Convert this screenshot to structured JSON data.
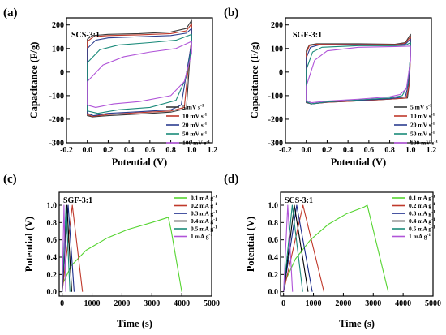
{
  "chart_data": [
    {
      "panel": "(a)",
      "type": "line",
      "label": "SCS-3:1",
      "xlabel": "Potential (V)",
      "ylabel": "Capacitance (F/g)",
      "xlim": [
        -0.2,
        1.2
      ],
      "ylim": [
        -300,
        230
      ],
      "xticks": [
        -0.2,
        0.0,
        0.2,
        0.4,
        0.6,
        0.8,
        1.0,
        1.2
      ],
      "yticks": [
        -300,
        -200,
        -100,
        0,
        100,
        200
      ],
      "legend_position": "bottom-right",
      "series": [
        {
          "name": "5 mV s",
          "superscript": "-1",
          "color": "#3a3a3a",
          "top": [
            [
              0.0,
              140
            ],
            [
              0.05,
              155
            ],
            [
              0.2,
              160
            ],
            [
              0.5,
              163
            ],
            [
              0.8,
              170
            ],
            [
              0.95,
              185
            ],
            [
              1.0,
              220
            ]
          ],
          "bottom": [
            [
              1.0,
              150
            ],
            [
              0.98,
              40
            ],
            [
              0.95,
              -155
            ],
            [
              0.8,
              -170
            ],
            [
              0.5,
              -178
            ],
            [
              0.2,
              -185
            ],
            [
              0.05,
              -190
            ],
            [
              0.0,
              -185
            ],
            [
              0.0,
              140
            ]
          ]
        },
        {
          "name": "10 mV s",
          "superscript": "-1",
          "color": "#c0392b",
          "top": [
            [
              0.0,
              130
            ],
            [
              0.06,
              150
            ],
            [
              0.2,
              155
            ],
            [
              0.5,
              158
            ],
            [
              0.8,
              163
            ],
            [
              0.95,
              175
            ],
            [
              1.0,
              205
            ]
          ],
          "bottom": [
            [
              1.0,
              140
            ],
            [
              0.97,
              30
            ],
            [
              0.93,
              -150
            ],
            [
              0.8,
              -165
            ],
            [
              0.5,
              -172
            ],
            [
              0.2,
              -180
            ],
            [
              0.05,
              -188
            ],
            [
              0.0,
              -180
            ],
            [
              0.0,
              130
            ]
          ]
        },
        {
          "name": "20 mV s",
          "superscript": "-1",
          "color": "#2c3e8f",
          "top": [
            [
              0.0,
              100
            ],
            [
              0.08,
              135
            ],
            [
              0.2,
              145
            ],
            [
              0.5,
              150
            ],
            [
              0.8,
              155
            ],
            [
              0.95,
              165
            ],
            [
              1.0,
              185
            ]
          ],
          "bottom": [
            [
              1.0,
              125
            ],
            [
              0.96,
              20
            ],
            [
              0.9,
              -140
            ],
            [
              0.8,
              -160
            ],
            [
              0.5,
              -168
            ],
            [
              0.2,
              -175
            ],
            [
              0.06,
              -185
            ],
            [
              0.0,
              -175
            ],
            [
              0.0,
              100
            ]
          ]
        },
        {
          "name": "50 mV s",
          "superscript": "-1",
          "color": "#1a8a7a",
          "top": [
            [
              0.0,
              40
            ],
            [
              0.12,
              95
            ],
            [
              0.3,
              115
            ],
            [
              0.6,
              125
            ],
            [
              0.85,
              135
            ],
            [
              1.0,
              160
            ]
          ],
          "bottom": [
            [
              1.0,
              110
            ],
            [
              0.95,
              -20
            ],
            [
              0.85,
              -120
            ],
            [
              0.6,
              -150
            ],
            [
              0.3,
              -160
            ],
            [
              0.1,
              -175
            ],
            [
              0.0,
              -165
            ],
            [
              0.0,
              40
            ]
          ]
        },
        {
          "name": "100 mV s",
          "superscript": "-1",
          "color": "#b054d8",
          "top": [
            [
              0.0,
              -40
            ],
            [
              0.15,
              30
            ],
            [
              0.35,
              65
            ],
            [
              0.6,
              85
            ],
            [
              0.85,
              100
            ],
            [
              1.0,
              130
            ]
          ],
          "bottom": [
            [
              1.0,
              80
            ],
            [
              0.93,
              -40
            ],
            [
              0.8,
              -100
            ],
            [
              0.5,
              -125
            ],
            [
              0.25,
              -135
            ],
            [
              0.08,
              -150
            ],
            [
              0.0,
              -140
            ],
            [
              0.0,
              -40
            ]
          ]
        }
      ]
    },
    {
      "panel": "(b)",
      "type": "line",
      "label": "SGF-3:1",
      "xlabel": "Potential (V)",
      "ylabel": "Capacitance (F/g)",
      "xlim": [
        -0.2,
        1.2
      ],
      "ylim": [
        -300,
        230
      ],
      "xticks": [
        -0.2,
        0.0,
        0.2,
        0.4,
        0.6,
        0.8,
        1.0,
        1.2
      ],
      "yticks": [
        -300,
        -200,
        -100,
        0,
        100,
        200
      ],
      "legend_position": "bottom-right",
      "series": [
        {
          "name": "5 mV s",
          "superscript": "-1",
          "color": "#3a3a3a",
          "top": [
            [
              0.0,
              90
            ],
            [
              0.03,
              115
            ],
            [
              0.1,
              120
            ],
            [
              0.5,
              120
            ],
            [
              0.85,
              118
            ],
            [
              0.95,
              125
            ],
            [
              1.0,
              160
            ]
          ],
          "bottom": [
            [
              1.0,
              100
            ],
            [
              0.99,
              -40
            ],
            [
              0.97,
              -110
            ],
            [
              0.8,
              -115
            ],
            [
              0.5,
              -122
            ],
            [
              0.2,
              -128
            ],
            [
              0.05,
              -135
            ],
            [
              0.0,
              -130
            ],
            [
              0.0,
              90
            ]
          ]
        },
        {
          "name": "10 mV s",
          "superscript": "-1",
          "color": "#c0392b",
          "top": [
            [
              0.0,
              80
            ],
            [
              0.03,
              112
            ],
            [
              0.1,
              118
            ],
            [
              0.5,
              118
            ],
            [
              0.85,
              116
            ],
            [
              0.95,
              122
            ],
            [
              1.0,
              150
            ]
          ],
          "bottom": [
            [
              1.0,
              95
            ],
            [
              0.99,
              -45
            ],
            [
              0.96,
              -110
            ],
            [
              0.8,
              -115
            ],
            [
              0.5,
              -122
            ],
            [
              0.2,
              -128
            ],
            [
              0.05,
              -135
            ],
            [
              0.0,
              -128
            ],
            [
              0.0,
              80
            ]
          ]
        },
        {
          "name": "20 mV s",
          "superscript": "-1",
          "color": "#2c3e8f",
          "top": [
            [
              0.0,
              60
            ],
            [
              0.04,
              105
            ],
            [
              0.12,
              115
            ],
            [
              0.5,
              116
            ],
            [
              0.85,
              114
            ],
            [
              0.95,
              118
            ],
            [
              1.0,
              140
            ]
          ],
          "bottom": [
            [
              1.0,
              85
            ],
            [
              0.98,
              -50
            ],
            [
              0.95,
              -105
            ],
            [
              0.8,
              -113
            ],
            [
              0.5,
              -120
            ],
            [
              0.2,
              -127
            ],
            [
              0.05,
              -135
            ],
            [
              0.0,
              -127
            ],
            [
              0.0,
              60
            ]
          ]
        },
        {
          "name": "50 mV s",
          "superscript": "-1",
          "color": "#1a8a7a",
          "top": [
            [
              0.0,
              10
            ],
            [
              0.06,
              85
            ],
            [
              0.15,
              105
            ],
            [
              0.5,
              112
            ],
            [
              0.85,
              112
            ],
            [
              0.95,
              114
            ],
            [
              1.0,
              125
            ]
          ],
          "bottom": [
            [
              1.0,
              70
            ],
            [
              0.97,
              -60
            ],
            [
              0.92,
              -100
            ],
            [
              0.8,
              -110
            ],
            [
              0.5,
              -118
            ],
            [
              0.2,
              -126
            ],
            [
              0.05,
              -135
            ],
            [
              0.0,
              -125
            ],
            [
              0.0,
              10
            ]
          ]
        },
        {
          "name": "100 mV s",
          "superscript": "-1",
          "color": "#b054d8",
          "top": [
            [
              0.0,
              -60
            ],
            [
              0.08,
              50
            ],
            [
              0.2,
              90
            ],
            [
              0.5,
              105
            ],
            [
              0.85,
              108
            ],
            [
              1.0,
              110
            ]
          ],
          "bottom": [
            [
              1.0,
              50
            ],
            [
              0.96,
              -70
            ],
            [
              0.9,
              -95
            ],
            [
              0.8,
              -105
            ],
            [
              0.5,
              -115
            ],
            [
              0.2,
              -123
            ],
            [
              0.05,
              -130
            ],
            [
              0.0,
              -120
            ],
            [
              0.0,
              -60
            ]
          ]
        }
      ]
    },
    {
      "panel": "(c)",
      "type": "line",
      "label": "SGF-3:1",
      "xlabel": "Time (s)",
      "ylabel": "Potential (V)",
      "xlim": [
        -100,
        5000
      ],
      "ylim": [
        -0.05,
        1.15
      ],
      "xticks": [
        0,
        1000,
        2000,
        3000,
        4000,
        5000
      ],
      "yticks": [
        0.0,
        0.2,
        0.4,
        0.6,
        0.8,
        1.0
      ],
      "legend_position": "top-right",
      "series": [
        {
          "name": "0.1 mA g",
          "superscript": "-1",
          "color": "#55d430",
          "points": [
            [
              0,
              0.0
            ],
            [
              30,
              0.1
            ],
            [
              300,
              0.3
            ],
            [
              800,
              0.48
            ],
            [
              1500,
              0.62
            ],
            [
              2200,
              0.72
            ],
            [
              3000,
              0.8
            ],
            [
              3550,
              0.86
            ],
            [
              3650,
              0.7
            ],
            [
              4000,
              0.0
            ]
          ]
        },
        {
          "name": "0.2 mA g",
          "superscript": "-1",
          "color": "#c0392b",
          "points": [
            [
              0,
              0.0
            ],
            [
              340,
              1.0
            ],
            [
              680,
              0.0
            ]
          ]
        },
        {
          "name": "0.3 mA g",
          "superscript": "-1",
          "color": "#1a2a8a",
          "points": [
            [
              0,
              0.0
            ],
            [
              200,
              1.0
            ],
            [
              400,
              0.0
            ]
          ]
        },
        {
          "name": "0.4 mA g",
          "superscript": "-1",
          "color": "#000000",
          "points": [
            [
              0,
              0.0
            ],
            [
              160,
              1.0
            ],
            [
              320,
              0.0
            ]
          ]
        },
        {
          "name": "0.5 mA g",
          "superscript": "-1",
          "color": "#1a8a7a",
          "points": [
            [
              0,
              0.0
            ],
            [
              130,
              1.0
            ],
            [
              260,
              0.0
            ]
          ]
        },
        {
          "name": "1 mA g",
          "superscript": "-1",
          "color": "#b054d8",
          "points": [
            [
              0,
              0.0
            ],
            [
              60,
              1.0
            ],
            [
              120,
              0.0
            ]
          ]
        }
      ]
    },
    {
      "panel": "(d)",
      "type": "line",
      "label": "SCS-3:1",
      "xlabel": "Time (s)",
      "ylabel": "Potential (V)",
      "xlim": [
        -100,
        5000
      ],
      "ylim": [
        -0.05,
        1.15
      ],
      "xticks": [
        0,
        1000,
        2000,
        3000,
        4000,
        5000
      ],
      "yticks": [
        0.0,
        0.2,
        0.4,
        0.6,
        0.8,
        1.0
      ],
      "legend_position": "top-right",
      "series": [
        {
          "name": "0.1 mA g",
          "superscript": "-1",
          "color": "#55d430",
          "points": [
            [
              0,
              0.0
            ],
            [
              50,
              0.12
            ],
            [
              400,
              0.38
            ],
            [
              900,
              0.6
            ],
            [
              1500,
              0.78
            ],
            [
              2100,
              0.9
            ],
            [
              2700,
              0.98
            ],
            [
              2800,
              1.0
            ],
            [
              3500,
              0.0
            ]
          ]
        },
        {
          "name": "0.2 mA g",
          "superscript": "-1",
          "color": "#c0392b",
          "points": [
            [
              0,
              0.0
            ],
            [
              650,
              1.0
            ],
            [
              1350,
              0.0
            ]
          ]
        },
        {
          "name": "0.3 mA g",
          "superscript": "-1",
          "color": "#1a2a8a",
          "points": [
            [
              0,
              0.0
            ],
            [
              440,
              1.0
            ],
            [
              960,
              0.0
            ]
          ]
        },
        {
          "name": "0.4 mA g",
          "superscript": "-1",
          "color": "#000000",
          "points": [
            [
              0,
              0.0
            ],
            [
              360,
              1.0
            ],
            [
              820,
              0.0
            ]
          ]
        },
        {
          "name": "0.5 mA g",
          "superscript": "-1",
          "color": "#1a8a7a",
          "points": [
            [
              0,
              0.0
            ],
            [
              290,
              1.0
            ],
            [
              640,
              0.0
            ]
          ]
        },
        {
          "name": "1 mA g",
          "superscript": "-1",
          "color": "#b054d8",
          "points": [
            [
              0,
              0.0
            ],
            [
              140,
              1.0
            ],
            [
              300,
              0.0
            ]
          ]
        }
      ]
    }
  ]
}
